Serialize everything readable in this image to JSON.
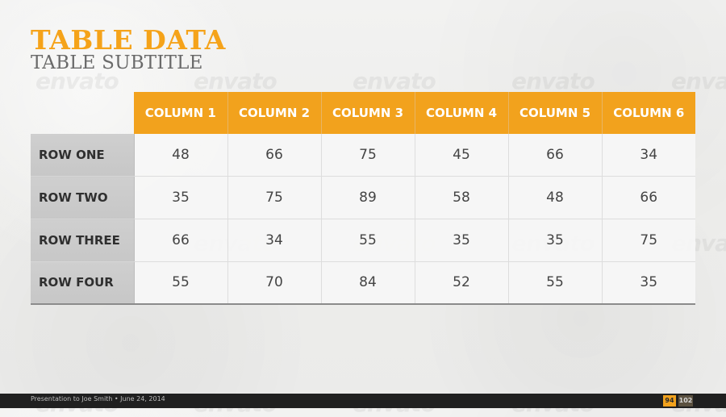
{
  "slide": {
    "title": "TABLE DATA",
    "subtitle": "TABLE SUBTITLE"
  },
  "table": {
    "columns": [
      "COLUMN 1",
      "COLUMN 2",
      "COLUMN 3",
      "COLUMN 4",
      "COLUMN 5",
      "COLUMN 6"
    ],
    "rows": [
      {
        "label": "ROW ONE",
        "values": [
          "48",
          "66",
          "75",
          "45",
          "66",
          "34"
        ]
      },
      {
        "label": "ROW TWO",
        "values": [
          "35",
          "75",
          "89",
          "58",
          "48",
          "66"
        ]
      },
      {
        "label": "ROW THREE",
        "values": [
          "66",
          "34",
          "55",
          "35",
          "35",
          "75"
        ]
      },
      {
        "label": "ROW FOUR",
        "values": [
          "55",
          "70",
          "84",
          "52",
          "55",
          "35"
        ]
      }
    ]
  },
  "footer": {
    "text": "Presentation to Joe Smith • June 24, 2014",
    "page_current": "94",
    "page_total": "102"
  },
  "watermark": {
    "text": "envato"
  },
  "theme": {
    "accent": "#f2a21d",
    "row_header": "#c9c9c9",
    "cell": "#f7f7f7",
    "text_dark": "#444444",
    "footer_bg": "#202020"
  }
}
